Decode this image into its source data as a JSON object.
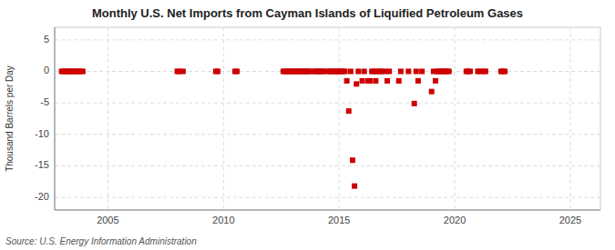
{
  "chart_data": {
    "type": "scatter",
    "title": "Monthly U.S. Net Imports from Cayman Islands of Liquified Petroleum Gases",
    "ylabel": "Thousand Barrels per Day",
    "annotation": "Source: U.S. Energy Information Administration",
    "color": "#cc0000",
    "marker": "square",
    "grid": true,
    "xlim": [
      2002.7,
      2026.3
    ],
    "ylim": [
      -22,
      7
    ],
    "xticks": [
      2005,
      2010,
      2015,
      2020,
      2025
    ],
    "yticks": [
      5,
      0,
      -5,
      -10,
      -15,
      -20
    ],
    "x": [
      2003.0,
      2003.083,
      2003.167,
      2003.25,
      2003.333,
      2003.417,
      2003.5,
      2003.583,
      2003.667,
      2003.75,
      2003.833,
      2003.917,
      2008.0,
      2008.083,
      2008.25,
      2009.667,
      2009.75,
      2010.5,
      2010.583,
      2012.583,
      2012.667,
      2012.75,
      2012.833,
      2012.917,
      2013.0,
      2013.083,
      2013.167,
      2013.25,
      2013.333,
      2013.417,
      2013.5,
      2013.583,
      2013.667,
      2013.75,
      2013.917,
      2014.0,
      2014.083,
      2014.167,
      2014.25,
      2014.333,
      2014.5,
      2014.583,
      2014.667,
      2014.75,
      2014.833,
      2014.917,
      2015.0,
      2015.083,
      2015.167,
      2015.25,
      2015.333,
      2015.417,
      2015.5,
      2015.583,
      2015.667,
      2015.75,
      2015.833,
      2016.0,
      2016.083,
      2016.25,
      2016.333,
      2016.417,
      2016.5,
      2016.583,
      2016.667,
      2016.75,
      2016.833,
      2017.0,
      2017.083,
      2017.167,
      2017.583,
      2017.667,
      2018.0,
      2018.25,
      2018.333,
      2018.417,
      2018.583,
      2019.0,
      2019.083,
      2019.167,
      2019.25,
      2019.333,
      2019.417,
      2019.5,
      2019.583,
      2019.667,
      2019.75,
      2020.5,
      2020.583,
      2020.667,
      2021.0,
      2021.083,
      2021.25,
      2021.333,
      2022.0,
      2022.083,
      2022.167
    ],
    "values": [
      0,
      0,
      0,
      0,
      0,
      0,
      0,
      0,
      0,
      0,
      0,
      0,
      0,
      0,
      0,
      0,
      0,
      0,
      0,
      0,
      0,
      0,
      0,
      0,
      0,
      0,
      0,
      0,
      0,
      0,
      0,
      0,
      0,
      0,
      0,
      0,
      0,
      0,
      0,
      0,
      0,
      0,
      0,
      0,
      0,
      0,
      0,
      0,
      0,
      0,
      -1.5,
      -6.3,
      0,
      -14.1,
      -18.2,
      -2.0,
      0,
      -1.5,
      0,
      -1.5,
      -1.5,
      0,
      0,
      -1.5,
      0,
      0,
      0,
      0,
      -1.5,
      0,
      -1.5,
      0,
      0,
      -5.1,
      0,
      -1.5,
      0,
      -3.2,
      0,
      -1.5,
      0,
      0,
      0,
      0,
      0,
      0,
      0,
      0,
      0,
      0,
      0,
      0,
      0,
      0,
      0,
      0,
      0
    ]
  }
}
